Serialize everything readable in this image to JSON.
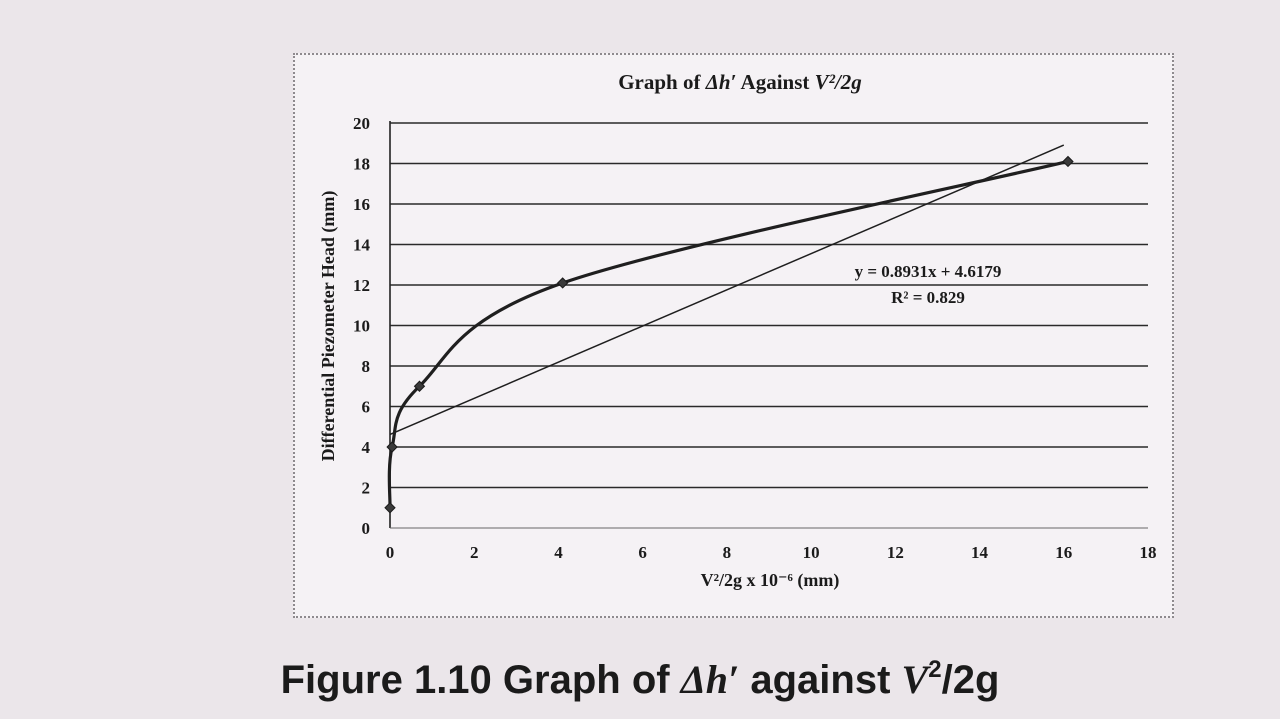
{
  "chart_data": {
    "type": "scatter",
    "title_parts": {
      "prefix": "Graph of ",
      "dh": "Δh′",
      "mid": " Against ",
      "v": "V²/2g"
    },
    "xlabel": "V²/2g x 10⁻⁶ (mm)",
    "ylabel": "Differential Piezometer Head (mm)",
    "xlim": [
      0,
      18
    ],
    "ylim": [
      0,
      20
    ],
    "xticks": [
      "0",
      "2",
      "4",
      "6",
      "8",
      "10",
      "12",
      "14",
      "16",
      "18"
    ],
    "yticks": [
      "0",
      "2",
      "4",
      "6",
      "8",
      "10",
      "12",
      "14",
      "16",
      "18",
      "20"
    ],
    "grid": "horizontal",
    "series": [
      {
        "style": "smoothed-line-with-markers",
        "color": "#1f1f1f",
        "x": [
          0,
          0.05,
          0.7,
          4.1,
          16.1
        ],
        "y": [
          1,
          4,
          7,
          12.1,
          18.1
        ]
      }
    ],
    "trendline": {
      "type": "linear",
      "slope": 0.8931,
      "intercept": 4.6179,
      "x_range": [
        0,
        16
      ],
      "equation_label": "y = 0.8931x + 4.6179",
      "r2_label": "R² = 0.829"
    }
  },
  "caption": {
    "prefix": "Figure 1.10 Graph of ",
    "dh": "Δh′",
    "mid": " against ",
    "v": "V",
    "sup": "2",
    "suffix": "/2g"
  }
}
